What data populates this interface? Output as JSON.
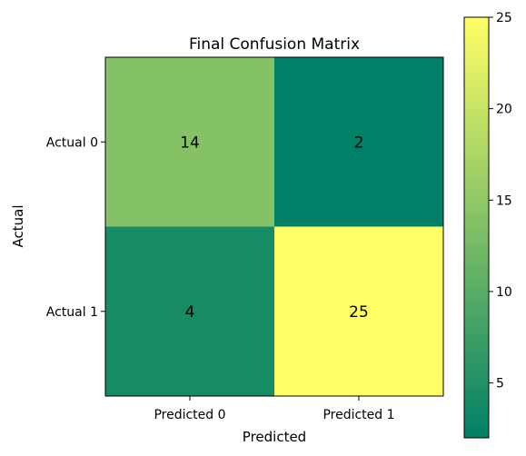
{
  "chart_data": {
    "type": "heatmap",
    "title": "Final Confusion Matrix",
    "xlabel": "Predicted",
    "ylabel": "Actual",
    "x_categories": [
      "Predicted 0",
      "Predicted 1"
    ],
    "y_categories": [
      "Actual 0",
      "Actual 1"
    ],
    "values": [
      [
        14,
        2
      ],
      [
        4,
        25
      ]
    ],
    "colormap": "summer",
    "color_range": [
      2,
      25
    ],
    "colorbar_ticks": [
      5,
      10,
      15,
      20,
      25
    ],
    "colors": {
      "low": "#008066",
      "high": "#ffff66"
    }
  }
}
